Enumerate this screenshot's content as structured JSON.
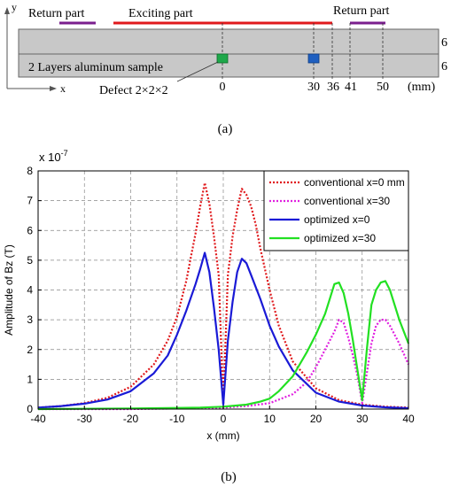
{
  "panel_a": {
    "y_axis_letter": "y",
    "x_axis_letter": "x",
    "return_left_label": "Return part",
    "exciting_label": "Exciting part",
    "return_right_label": "Return part",
    "sample_label": "2 Layers aluminum sample",
    "defect_label": "Defect 2×2×2",
    "thickness_top": "6",
    "thickness_bottom": "6",
    "position_ticks": [
      "0",
      "30",
      "36",
      "41",
      "50"
    ],
    "unit": "(mm)",
    "caption": "(a)",
    "colors": {
      "plate": "#c8c8c8",
      "exciting": "#e0191c",
      "return": "#7a1e8e",
      "defect_0": "#1ea84a",
      "defect_30": "#1f5fc0"
    }
  },
  "chart_data": {
    "type": "line",
    "title": "",
    "xlabel": "x (mm)",
    "ylabel": "Amplitude of Bz (T)",
    "exponent_label": "x 10-7",
    "exponent_base": "x 10",
    "exponent_power": "-7",
    "xlim": [
      -40,
      40
    ],
    "ylim": [
      0,
      8
    ],
    "x_ticks": [
      -40,
      -30,
      -20,
      -10,
      0,
      10,
      20,
      30,
      40
    ],
    "y_ticks": [
      0,
      1,
      2,
      3,
      4,
      5,
      6,
      7,
      8
    ],
    "grid": true,
    "legend_position": "top-right",
    "series": [
      {
        "name": "conventional x=0 mm",
        "color": "#e0191c",
        "style": "dotted",
        "x": [
          -40,
          -35,
          -30,
          -25,
          -20,
          -15,
          -12,
          -10,
          -8,
          -7,
          -6,
          -5,
          -4,
          -3,
          -2,
          -1,
          0,
          1,
          2,
          3,
          4,
          5,
          6,
          7,
          8,
          10,
          12,
          15,
          20,
          25,
          30,
          35,
          40
        ],
        "y": [
          0.05,
          0.1,
          0.2,
          0.38,
          0.75,
          1.5,
          2.3,
          3.1,
          4.3,
          5.1,
          5.9,
          6.8,
          7.6,
          6.9,
          5.8,
          4.5,
          0.15,
          4.5,
          5.8,
          6.7,
          7.4,
          7.2,
          6.8,
          6.2,
          5.4,
          4.0,
          2.8,
          1.6,
          0.7,
          0.3,
          0.15,
          0.08,
          0.05
        ]
      },
      {
        "name": "conventional x=30",
        "color": "#e020e0",
        "style": "dotted",
        "x": [
          -40,
          -20,
          -10,
          0,
          5,
          10,
          15,
          18,
          20,
          22,
          24,
          25,
          26,
          27,
          28,
          29,
          30,
          31,
          32,
          33,
          34,
          35,
          36,
          38,
          40
        ],
        "y": [
          0.0,
          0.0,
          0.02,
          0.05,
          0.1,
          0.2,
          0.5,
          0.9,
          1.4,
          2.0,
          2.6,
          3.0,
          2.9,
          2.4,
          1.8,
          1.1,
          0.2,
          1.2,
          2.2,
          2.8,
          3.0,
          3.0,
          2.8,
          2.2,
          1.5
        ]
      },
      {
        "name": "optimized x=0",
        "color": "#1a1ad6",
        "style": "solid",
        "x": [
          -40,
          -35,
          -30,
          -25,
          -20,
          -15,
          -12,
          -10,
          -8,
          -6,
          -5,
          -4,
          -3,
          -2,
          -1,
          0,
          1,
          2,
          3,
          4,
          5,
          6,
          8,
          10,
          12,
          15,
          20,
          25,
          30,
          35,
          40
        ],
        "y": [
          0.05,
          0.1,
          0.18,
          0.32,
          0.6,
          1.2,
          1.8,
          2.5,
          3.3,
          4.2,
          4.7,
          5.25,
          4.6,
          3.4,
          2.0,
          0.15,
          2.3,
          3.6,
          4.6,
          5.05,
          4.9,
          4.5,
          3.7,
          2.8,
          2.1,
          1.3,
          0.55,
          0.25,
          0.12,
          0.06,
          0.03
        ]
      },
      {
        "name": "optimized x=30",
        "color": "#22e022",
        "style": "solid",
        "x": [
          -40,
          -20,
          -10,
          -5,
          0,
          5,
          8,
          10,
          12,
          15,
          18,
          20,
          22,
          23,
          24,
          25,
          26,
          27,
          28,
          29,
          30,
          31,
          32,
          33,
          34,
          35,
          36,
          38,
          40
        ],
        "y": [
          0.0,
          0.02,
          0.04,
          0.05,
          0.08,
          0.15,
          0.25,
          0.35,
          0.6,
          1.1,
          1.9,
          2.5,
          3.2,
          3.7,
          4.2,
          4.25,
          3.9,
          3.2,
          2.3,
          1.3,
          0.3,
          2.0,
          3.5,
          4.0,
          4.25,
          4.3,
          4.0,
          3.0,
          2.2
        ]
      }
    ]
  },
  "panel_b": {
    "caption": "(b)"
  }
}
